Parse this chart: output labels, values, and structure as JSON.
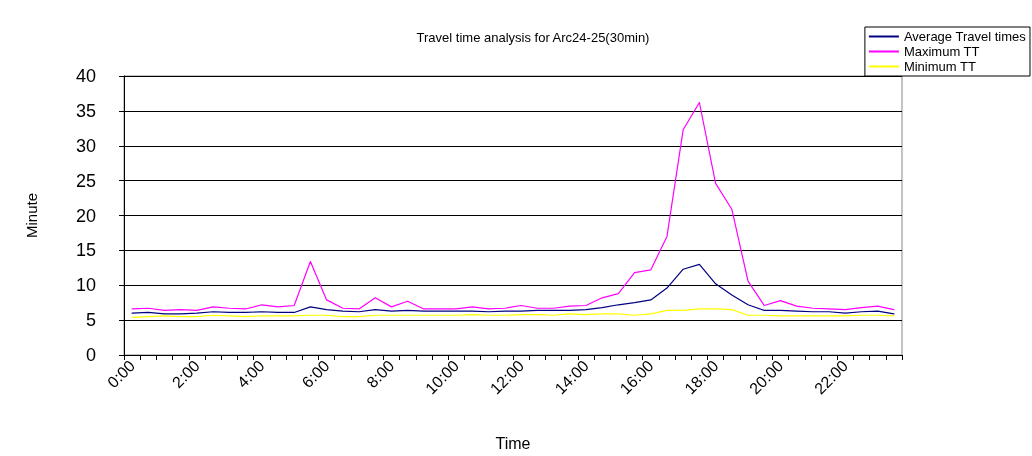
{
  "chart_data": {
    "type": "line",
    "title": "Travel time analysis for Arc24-25(30min)",
    "xlabel": "Time",
    "ylabel": "Minute",
    "categories": [
      "0:00",
      null,
      null,
      null,
      "2:00",
      null,
      null,
      null,
      "4:00",
      null,
      null,
      null,
      "6:00",
      null,
      null,
      null,
      "8:00",
      null,
      null,
      null,
      "10:00",
      null,
      null,
      null,
      "12:00",
      null,
      null,
      null,
      "14:00",
      null,
      null,
      null,
      "16:00",
      null,
      null,
      null,
      "18:00",
      null,
      null,
      null,
      "20:00",
      null,
      null,
      null,
      "22:00",
      null,
      null,
      null
    ],
    "series": [
      {
        "name": "Average Travel times",
        "color": "#000080",
        "values": [
          6.0,
          6.1,
          5.9,
          5.9,
          6.0,
          6.2,
          6.1,
          6.1,
          6.2,
          6.1,
          6.1,
          6.9,
          6.5,
          6.3,
          6.2,
          6.5,
          6.3,
          6.4,
          6.3,
          6.3,
          6.3,
          6.3,
          6.2,
          6.3,
          6.3,
          6.4,
          6.4,
          6.4,
          6.5,
          6.8,
          7.2,
          7.5,
          7.9,
          9.6,
          12.3,
          13.0,
          10.2,
          8.6,
          7.2,
          6.4,
          6.4,
          6.3,
          6.2,
          6.2,
          6.0,
          6.2,
          6.3,
          5.9
        ]
      },
      {
        "name": "Maximum TT",
        "color": "#ff00ff",
        "values": [
          6.6,
          6.7,
          6.4,
          6.5,
          6.4,
          6.9,
          6.7,
          6.6,
          7.2,
          6.9,
          7.1,
          13.4,
          7.9,
          6.7,
          6.6,
          8.2,
          6.9,
          7.7,
          6.6,
          6.6,
          6.6,
          6.9,
          6.6,
          6.7,
          7.1,
          6.7,
          6.7,
          7.0,
          7.1,
          8.2,
          8.8,
          11.8,
          12.2,
          17.0,
          32.3,
          36.2,
          24.6,
          20.9,
          10.6,
          7.1,
          7.8,
          7.0,
          6.7,
          6.6,
          6.5,
          6.8,
          7.0,
          6.5
        ]
      },
      {
        "name": "Minimum TT",
        "color": "#ffff00",
        "values": [
          5.4,
          5.5,
          5.6,
          5.5,
          5.5,
          5.7,
          5.6,
          5.5,
          5.6,
          5.6,
          5.6,
          5.7,
          5.7,
          5.5,
          5.5,
          5.7,
          5.7,
          5.7,
          5.7,
          5.7,
          5.7,
          5.8,
          5.7,
          5.7,
          5.8,
          5.8,
          5.7,
          5.9,
          5.8,
          5.9,
          5.9,
          5.7,
          5.9,
          6.4,
          6.4,
          6.6,
          6.6,
          6.5,
          5.7,
          5.7,
          5.6,
          5.6,
          5.6,
          5.6,
          5.6,
          5.7,
          5.7,
          5.6
        ]
      }
    ],
    "ylim": [
      0,
      40
    ],
    "yticks": [
      0,
      5,
      10,
      15,
      20,
      25,
      30,
      35,
      40
    ],
    "grid": "y",
    "legend": "top right",
    "marker": "none",
    "line_style": "solid"
  }
}
